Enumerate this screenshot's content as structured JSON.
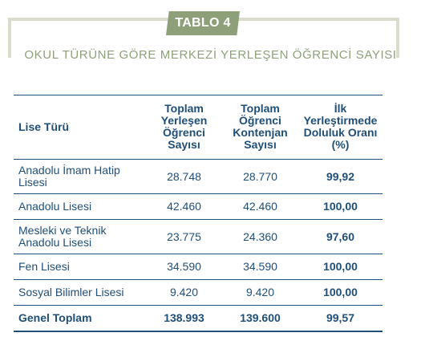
{
  "badge": "TABLO 4",
  "subtitle": "OKUL TÜRÜNE GÖRE MERKEZİ YERLEŞEN ÖĞRENCİ SAYISI",
  "headers": {
    "type": "Lise Türü",
    "placed": [
      "Toplam",
      "Yerleşen",
      "Öğrenci",
      "Sayısı"
    ],
    "quota": [
      "Toplam",
      "Öğrenci",
      "Kontenjan",
      "Sayısı"
    ],
    "rate": [
      "İlk",
      "Yerleştirmede",
      "Doluluk Oranı",
      "(%)"
    ]
  },
  "rows": [
    {
      "type": [
        "Anadolu İmam Hatip",
        "Lisesi"
      ],
      "placed": "28.748",
      "quota": "28.770",
      "rate": "99,92"
    },
    {
      "type": [
        "Anadolu Lisesi"
      ],
      "placed": "42.460",
      "quota": "42.460",
      "rate": "100,00"
    },
    {
      "type": [
        "Mesleki ve Teknik",
        "Anadolu Lisesi"
      ],
      "placed": "23.775",
      "quota": "24.360",
      "rate": "97,60"
    },
    {
      "type": [
        "Fen Lisesi"
      ],
      "placed": "34.590",
      "quota": "34.590",
      "rate": "100,00"
    },
    {
      "type": [
        "Sosyal Bilimler Lisesi"
      ],
      "placed": "9.420",
      "quota": "9.420",
      "rate": "100,00"
    }
  ],
  "total": {
    "type": "Genel Toplam",
    "placed": "138.993",
    "quota": "139.600",
    "rate": "99,57"
  },
  "colors": {
    "accent": "#8ea07a",
    "frame": "#d7dccb",
    "text": "#1f4e79"
  }
}
